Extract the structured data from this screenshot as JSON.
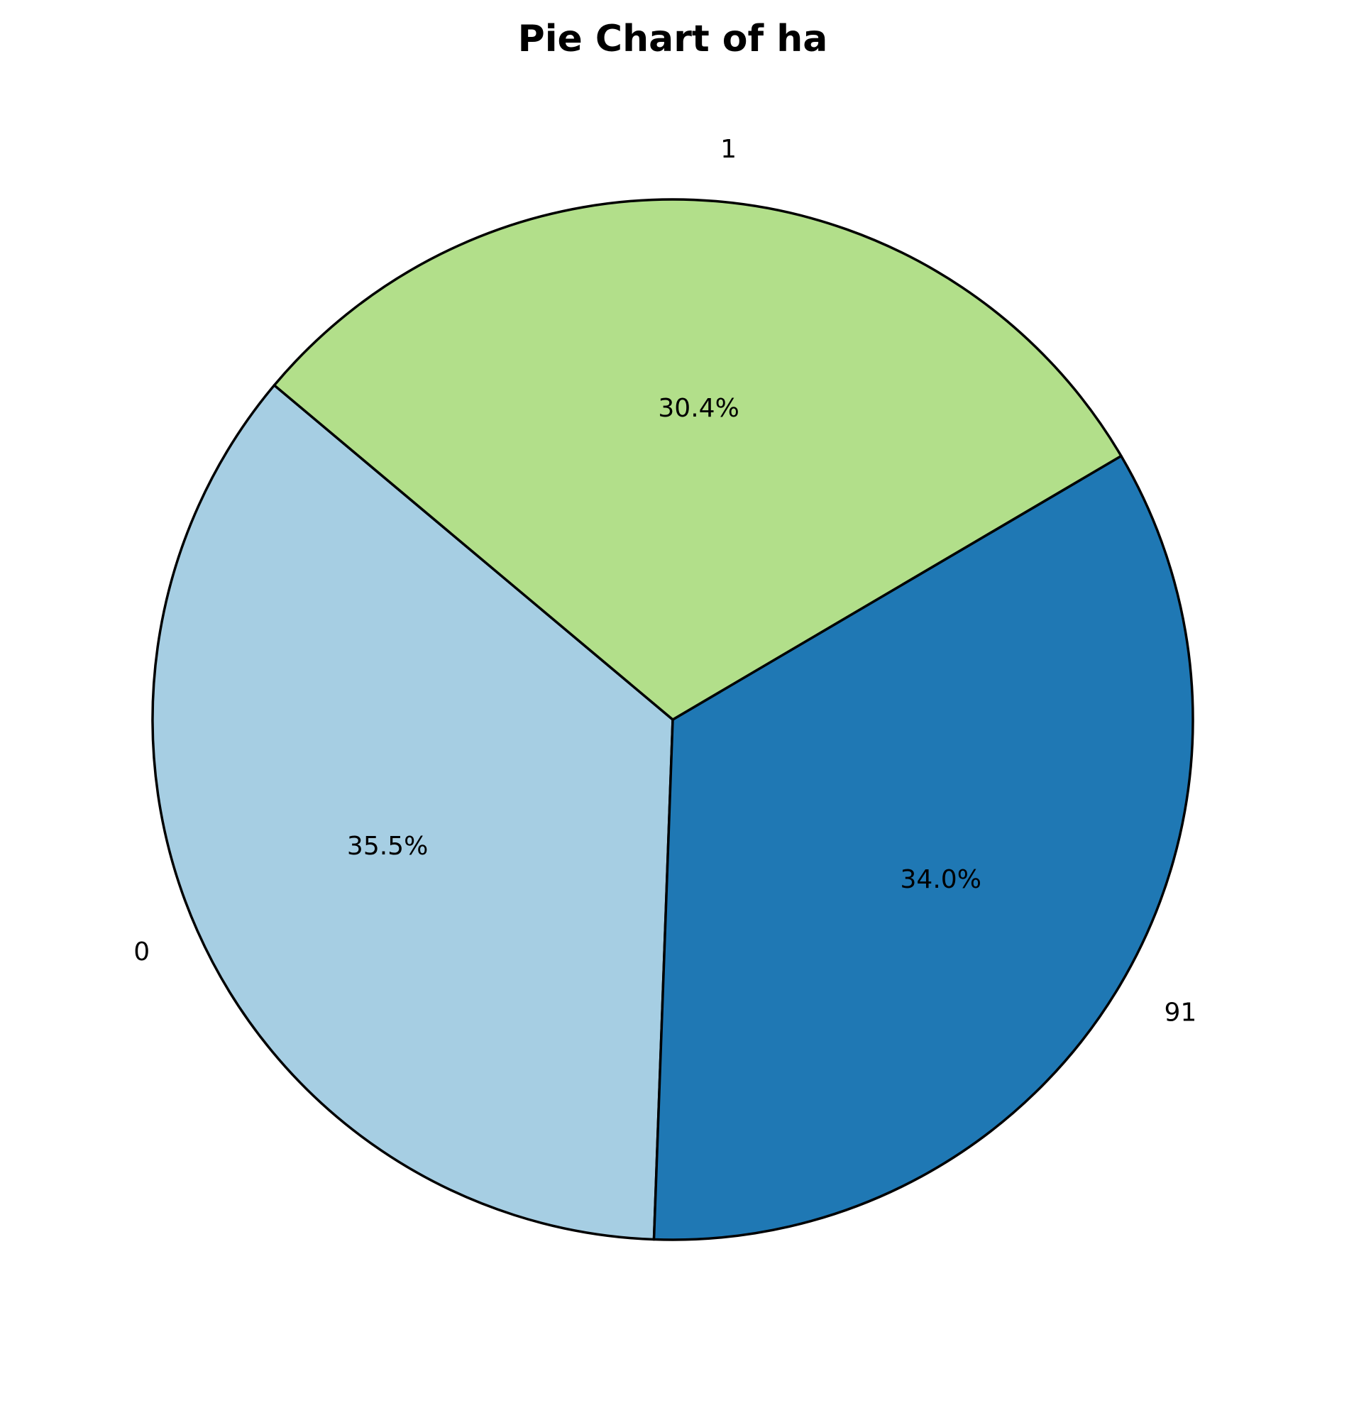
{
  "chart_data": {
    "type": "pie",
    "title": "Pie Chart of ha",
    "start_angle_deg": 140,
    "direction": "counterclockwise",
    "slices": [
      {
        "label": "0",
        "value": 35.5,
        "pct_label": "35.5%",
        "color": "#a6cee3"
      },
      {
        "label": "91",
        "value": 34.0,
        "pct_label": "34.0%",
        "color": "#1f78b4"
      },
      {
        "label": "1",
        "value": 30.4,
        "pct_label": "30.4%",
        "color": "#b2df8a"
      }
    ],
    "edge_color": "#000000"
  }
}
